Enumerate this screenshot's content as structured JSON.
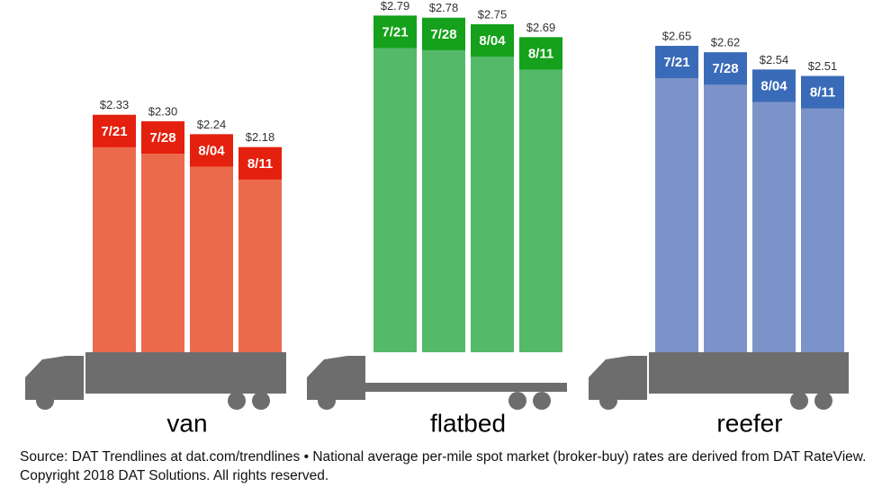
{
  "chart_data": [
    {
      "type": "bar",
      "title": "van",
      "categories": [
        "7/21",
        "7/28",
        "8/04",
        "8/11"
      ],
      "values": [
        2.33,
        2.3,
        2.24,
        2.18
      ],
      "value_labels": [
        "$2.33",
        "$2.30",
        "$2.24",
        "$2.18"
      ],
      "color": "#ec6a4c",
      "header_color": "#e4200e"
    },
    {
      "type": "bar",
      "title": "flatbed",
      "categories": [
        "7/21",
        "7/28",
        "8/04",
        "8/11"
      ],
      "values": [
        2.79,
        2.78,
        2.75,
        2.69
      ],
      "value_labels": [
        "$2.79",
        "$2.78",
        "$2.75",
        "$2.69"
      ],
      "color": "#55b96a",
      "header_color": "#15a11b"
    },
    {
      "type": "bar",
      "title": "reefer",
      "categories": [
        "7/21",
        "7/28",
        "8/04",
        "8/11"
      ],
      "values": [
        2.65,
        2.62,
        2.54,
        2.51
      ],
      "value_labels": [
        "$2.65",
        "$2.62",
        "$2.54",
        "$2.51"
      ],
      "color": "#7b93c8",
      "header_color": "#3a6bb8"
    }
  ],
  "source": "Source: DAT Trendlines at dat.com/trendlines • National average per-mile spot market (broker-buy) rates are derived from DAT RateView. Copyright 2018 DAT Solutions. All rights reserved."
}
